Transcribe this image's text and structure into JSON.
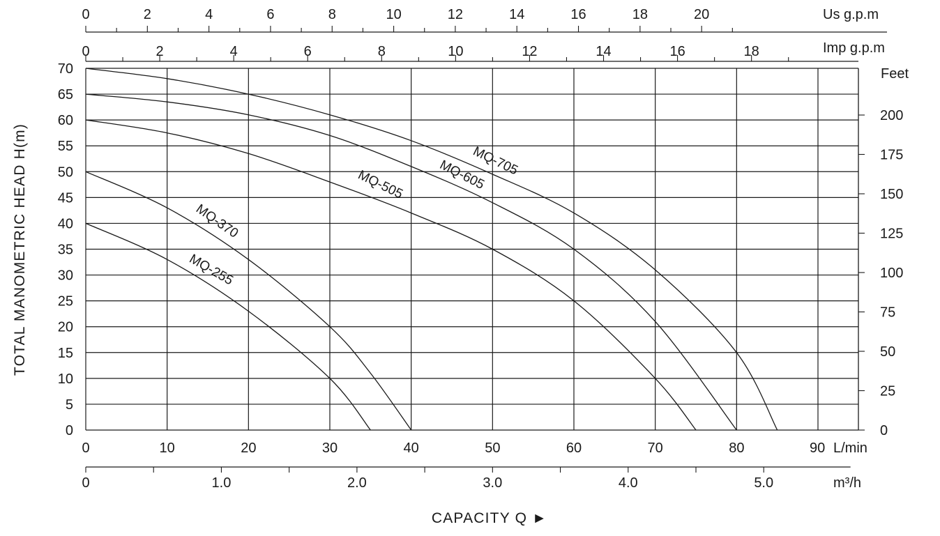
{
  "chart_data": {
    "type": "line",
    "title": "",
    "xlabel": "CAPACITY Q ►",
    "ylabel": "TOTAL MANOMETRIC HEAD H(m)",
    "xlim": [
      0,
      95
    ],
    "ylim": [
      0,
      70
    ],
    "grid": true,
    "x_ticks": [
      0,
      10,
      20,
      30,
      40,
      50,
      60,
      70,
      80,
      90
    ],
    "x_tick_labels": [
      "0",
      "10",
      "20",
      "30",
      "40",
      "50",
      "60",
      "70",
      "80",
      "90"
    ],
    "x_unit": "L/min",
    "y_ticks": [
      0,
      5,
      10,
      15,
      20,
      25,
      30,
      35,
      40,
      45,
      50,
      55,
      60,
      65,
      70
    ],
    "y_tick_labels": [
      "0",
      "5",
      "10",
      "15",
      "20",
      "25",
      "30",
      "35",
      "40",
      "45",
      "50",
      "55",
      "60",
      "65",
      "70"
    ],
    "axis_m3h": {
      "unit": "m³/h",
      "major": [
        0,
        1.0,
        2.0,
        3.0,
        4.0,
        5.0
      ],
      "labels": [
        "0",
        "1.0",
        "2.0",
        "3.0",
        "4.0",
        "5.0"
      ],
      "minor": [
        0.5,
        1.5,
        2.5,
        3.5,
        4.5
      ]
    },
    "axis_usgpm": {
      "unit": "Us g.p.m",
      "major": [
        0,
        2,
        4,
        6,
        8,
        10,
        12,
        14,
        16,
        18,
        20
      ],
      "labels": [
        "0",
        "2",
        "4",
        "6",
        "8",
        "10",
        "12",
        "14",
        "16",
        "18",
        "20"
      ],
      "minor": [
        1,
        3,
        5,
        7,
        9,
        11,
        13,
        15,
        17,
        19,
        21
      ]
    },
    "axis_impgpm": {
      "unit": "Imp g.p.m",
      "major": [
        0,
        2,
        4,
        6,
        8,
        10,
        12,
        14,
        16,
        18
      ],
      "labels": [
        "0",
        "2",
        "4",
        "6",
        "8",
        "10",
        "12",
        "14",
        "16",
        "18"
      ],
      "minor": [
        1,
        3,
        5,
        7,
        9,
        11,
        13,
        15,
        17,
        19
      ]
    },
    "axis_feet": {
      "unit": "Feet",
      "ticks": [
        0,
        25,
        50,
        75,
        100,
        125,
        150,
        175,
        200
      ],
      "labels": [
        "0",
        "25",
        "50",
        "75",
        "100",
        "125",
        "150",
        "175",
        "200"
      ]
    },
    "series": [
      {
        "name": "MQ-255",
        "x": [
          0,
          10,
          20,
          30,
          35
        ],
        "y": [
          40,
          33,
          23,
          10,
          0
        ]
      },
      {
        "name": "MQ-370",
        "x": [
          0,
          10,
          20,
          30,
          35,
          40
        ],
        "y": [
          50,
          43,
          33,
          20,
          11,
          0
        ]
      },
      {
        "name": "MQ-505",
        "x": [
          0,
          10,
          20,
          30,
          40,
          50,
          60,
          70,
          75
        ],
        "y": [
          60,
          57.5,
          53.5,
          48,
          42,
          35,
          25,
          10,
          0
        ]
      },
      {
        "name": "MQ-605",
        "x": [
          0,
          10,
          20,
          30,
          40,
          50,
          60,
          70,
          80
        ],
        "y": [
          65,
          63.5,
          61,
          57,
          51,
          44,
          35,
          21,
          0
        ]
      },
      {
        "name": "MQ-705",
        "x": [
          0,
          10,
          20,
          30,
          40,
          50,
          60,
          70,
          80,
          85
        ],
        "y": [
          70,
          68,
          65,
          61,
          56,
          49.5,
          42,
          31,
          15,
          0
        ]
      }
    ]
  }
}
